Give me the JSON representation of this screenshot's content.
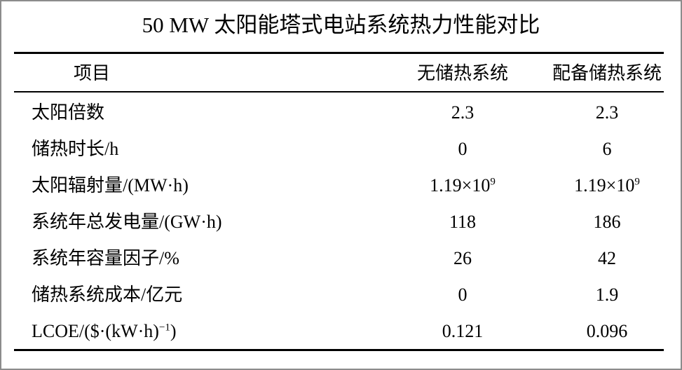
{
  "title": "50 MW 太阳能塔式电站系统热力性能对比",
  "headers": [
    "项目",
    "无储热系统",
    "配备储热系统"
  ],
  "rows": [
    {
      "item": "太阳倍数",
      "no_storage": "2.3",
      "with_storage": "2.3"
    },
    {
      "item": "储热时长/h",
      "no_storage": "0",
      "with_storage": "6"
    },
    {
      "item": "太阳辐射量/(MW·h)",
      "no_storage": "1.19×10",
      "no_storage_exp": "9",
      "with_storage": "1.19×10",
      "with_storage_exp": "9"
    },
    {
      "item": "系统年总发电量/(GW·h)",
      "no_storage": "118",
      "with_storage": "186"
    },
    {
      "item": "系统年容量因子/%",
      "no_storage": "26",
      "with_storage": "42"
    },
    {
      "item": "储热系统成本/亿元",
      "no_storage": "0",
      "with_storage": "1.9"
    },
    {
      "item": "LCOE/($·(kW·h)",
      "item_exp": "−1",
      "item_tail": ")",
      "no_storage": "0.121",
      "with_storage": "0.096"
    }
  ]
}
